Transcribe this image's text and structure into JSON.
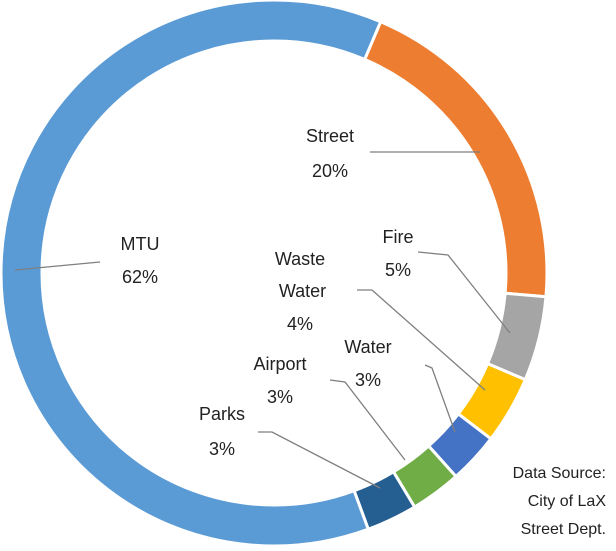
{
  "chart_data": {
    "type": "donut",
    "categories": [
      "Street",
      "Fire",
      "Waste Water",
      "Water",
      "Airport",
      "Parks",
      "MTU"
    ],
    "values": [
      20,
      5,
      4,
      3,
      3,
      3,
      62
    ],
    "value_labels": [
      "20%",
      "5%",
      "4%",
      "3%",
      "3%",
      "3%",
      "62%"
    ],
    "colors": [
      "#ed7d31",
      "#a5a5a5",
      "#ffc000",
      "#4472c4",
      "#70ad47",
      "#255e91",
      "#5b9bd5"
    ],
    "annotation": [
      "Data Source:",
      "City of LaX",
      "Street Dept."
    ]
  }
}
